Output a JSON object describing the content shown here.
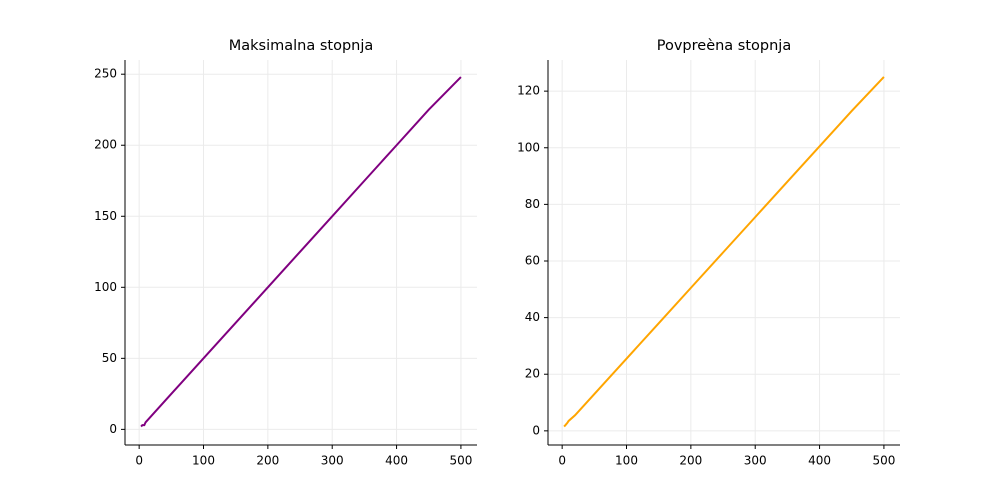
{
  "chart_data": [
    {
      "type": "line",
      "title": "Maksimalna stopnja",
      "x": [
        3,
        5,
        8,
        10,
        20,
        50,
        100,
        150,
        200,
        250,
        300,
        350,
        400,
        450,
        500
      ],
      "values": [
        2,
        3,
        3,
        5,
        10,
        25,
        50,
        75,
        100,
        125,
        150,
        175,
        200,
        225,
        248
      ],
      "color": "#800080",
      "xlim": [
        -22,
        525
      ],
      "ylim": [
        -11,
        260
      ],
      "xticks": [
        0,
        100,
        200,
        300,
        400,
        500
      ],
      "yticks": [
        0,
        50,
        100,
        150,
        200,
        250
      ],
      "grid": true
    },
    {
      "type": "line",
      "title": "Povpreèna stopnja",
      "x": [
        3,
        5,
        8,
        10,
        20,
        50,
        100,
        150,
        200,
        250,
        300,
        350,
        400,
        450,
        500
      ],
      "values": [
        1.5,
        2,
        2.8,
        3.5,
        5.5,
        13,
        25.5,
        38,
        50.5,
        63,
        75.5,
        88,
        100.5,
        113,
        125
      ],
      "color": "#ffa500",
      "xlim": [
        -22,
        525
      ],
      "ylim": [
        -5,
        131
      ],
      "xticks": [
        0,
        100,
        200,
        300,
        400,
        500
      ],
      "yticks": [
        0,
        20,
        40,
        60,
        80,
        100,
        120
      ],
      "grid": true
    }
  ]
}
